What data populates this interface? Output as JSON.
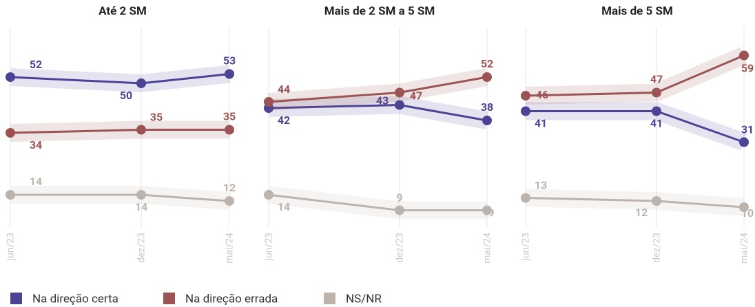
{
  "chart_data": [
    {
      "type": "line",
      "title": "Até 2 SM",
      "categories": [
        "jun/23",
        "dez/23",
        "mai/24"
      ],
      "ylim": [
        0,
        70
      ],
      "series": [
        {
          "name": "Na direção certa",
          "color": "#4b4494",
          "values": [
            52,
            50,
            53
          ]
        },
        {
          "name": "Na direção errada",
          "color": "#9b5353",
          "values": [
            34,
            35,
            35
          ]
        },
        {
          "name": "NS/NR",
          "color": "#bdb3ad",
          "values": [
            14,
            14,
            12
          ]
        }
      ]
    },
    {
      "type": "line",
      "title": "Mais de 2 SM a 5 SM",
      "categories": [
        "jun/23",
        "dez/23",
        "mai/24"
      ],
      "ylim": [
        0,
        70
      ],
      "series": [
        {
          "name": "Na direção certa",
          "color": "#4b4494",
          "values": [
            42,
            43,
            38
          ]
        },
        {
          "name": "Na direção errada",
          "color": "#9b5353",
          "values": [
            44,
            47,
            52
          ]
        },
        {
          "name": "NS/NR",
          "color": "#bdb3ad",
          "values": [
            14,
            9,
            9
          ]
        }
      ]
    },
    {
      "type": "line",
      "title": "Mais de 5 SM",
      "categories": [
        "jun/23",
        "dez/23",
        "mai/24"
      ],
      "ylim": [
        0,
        70
      ],
      "series": [
        {
          "name": "Na direção certa",
          "color": "#4b4494",
          "values": [
            41,
            41,
            31
          ]
        },
        {
          "name": "Na direção errada",
          "color": "#9b5353",
          "values": [
            46,
            47,
            59
          ]
        },
        {
          "name": "NS/NR",
          "color": "#bdb3ad",
          "values": [
            13,
            12,
            10
          ]
        }
      ]
    }
  ]
}
